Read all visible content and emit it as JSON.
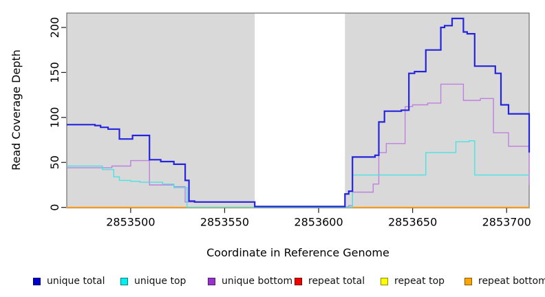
{
  "chart_data": {
    "type": "line",
    "step": "after",
    "title": "",
    "xlabel": "Coordinate in Reference Genome",
    "ylabel": "Read Coverage Depth",
    "xlim": [
      2853466,
      2853712
    ],
    "ylim": [
      0,
      216
    ],
    "x_ticks": [
      2853500,
      2853550,
      2853600,
      2853650,
      2853700
    ],
    "y_ticks": [
      0,
      50,
      100,
      150,
      200
    ],
    "grid": false,
    "plot_background": "#d9d9d9",
    "box_color": "#6e6e6e",
    "tick_color": "#1a1a1a",
    "no_data_band": {
      "x_start": 2853566,
      "x_end": 2853614,
      "fill": "#ffffff"
    },
    "legend_position": "bottom",
    "series": [
      {
        "name": "repeat total",
        "color": "#dd0000",
        "legend_color": "#ee0000",
        "width": 1.4,
        "points": [
          [
            2853466,
            0
          ],
          [
            2853712,
            0
          ]
        ]
      },
      {
        "name": "repeat top",
        "color": "#f5f500",
        "legend_color": "#ffff00",
        "width": 1.4,
        "points": [
          [
            2853466,
            0
          ],
          [
            2853712,
            0
          ]
        ]
      },
      {
        "name": "repeat bottom",
        "color": "#ff9e1b",
        "legend_color": "#ffa500",
        "width": 2,
        "points": [
          [
            2853466,
            0
          ],
          [
            2853712,
            0
          ]
        ]
      },
      {
        "name": "unique bottom",
        "color": "#bf7fe0",
        "legend_color": "#9932cc",
        "width": 1.4,
        "points": [
          [
            2853466,
            44
          ],
          [
            2853490,
            46
          ],
          [
            2853500,
            52
          ],
          [
            2853510,
            25
          ],
          [
            2853523,
            23
          ],
          [
            2853529,
            6
          ],
          [
            2853566,
            0.5
          ],
          [
            2853616,
            2
          ],
          [
            2853618,
            17
          ],
          [
            2853629,
            26
          ],
          [
            2853632,
            61
          ],
          [
            2853636,
            71
          ],
          [
            2853646,
            112
          ],
          [
            2853650,
            114
          ],
          [
            2853658,
            116
          ],
          [
            2853665,
            137
          ],
          [
            2853677,
            119
          ],
          [
            2853686,
            121
          ],
          [
            2853693,
            83
          ],
          [
            2853701,
            68
          ],
          [
            2853712,
            25
          ]
        ]
      },
      {
        "name": "unique top",
        "color": "#4ae2e2",
        "legend_color": "#00eeee",
        "width": 1.4,
        "points": [
          [
            2853466,
            46
          ],
          [
            2853485,
            42
          ],
          [
            2853491,
            34
          ],
          [
            2853494,
            30
          ],
          [
            2853500,
            29
          ],
          [
            2853505,
            28
          ],
          [
            2853517,
            26
          ],
          [
            2853523,
            22
          ],
          [
            2853530,
            0
          ],
          [
            2853618,
            36
          ],
          [
            2853657,
            61
          ],
          [
            2853673,
            73
          ],
          [
            2853680,
            74
          ],
          [
            2853683,
            36
          ],
          [
            2853712,
            36
          ]
        ]
      },
      {
        "name": "unique total",
        "color": "#2424dd",
        "legend_color": "#0000cd",
        "width": 2.2,
        "points": [
          [
            2853466,
            92
          ],
          [
            2853481,
            91
          ],
          [
            2853484,
            89
          ],
          [
            2853488,
            87
          ],
          [
            2853494,
            76
          ],
          [
            2853501,
            80
          ],
          [
            2853510,
            53
          ],
          [
            2853516,
            51
          ],
          [
            2853523,
            48
          ],
          [
            2853529,
            30
          ],
          [
            2853531,
            7
          ],
          [
            2853534,
            6
          ],
          [
            2853566,
            1
          ],
          [
            2853614,
            15
          ],
          [
            2853616,
            18
          ],
          [
            2853618,
            56
          ],
          [
            2853630,
            58
          ],
          [
            2853632,
            95
          ],
          [
            2853635,
            107
          ],
          [
            2853644,
            108
          ],
          [
            2853648,
            149
          ],
          [
            2853651,
            151
          ],
          [
            2853657,
            175
          ],
          [
            2853665,
            200
          ],
          [
            2853667,
            202
          ],
          [
            2853671,
            210
          ],
          [
            2853677,
            195
          ],
          [
            2853679,
            193
          ],
          [
            2853683,
            157
          ],
          [
            2853694,
            149
          ],
          [
            2853697,
            114
          ],
          [
            2853701,
            104
          ],
          [
            2853712,
            61
          ]
        ]
      }
    ],
    "legend_order": [
      "unique total",
      "unique top",
      "unique bottom",
      "repeat total",
      "repeat top",
      "repeat bottom"
    ]
  }
}
